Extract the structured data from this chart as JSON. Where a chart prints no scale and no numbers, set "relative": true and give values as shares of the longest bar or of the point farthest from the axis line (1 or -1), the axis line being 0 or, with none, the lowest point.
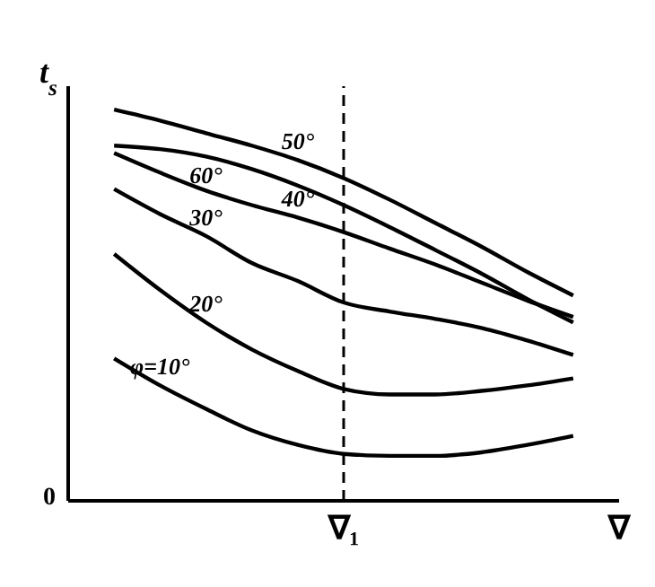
{
  "chart_data": {
    "type": "line",
    "relative": true,
    "ylabel": "t$_{s}$",
    "annotations": [
      "0"
    ],
    "categories": [
      null,
      null,
      null,
      null,
      null,
      null,
      "∇₁",
      null,
      null,
      null,
      null,
      null,
      "∇"
    ],
    "series": [
      {
        "name": "50°",
        "color": "#000000",
        "values": [
          null,
          1,
          0.972,
          0.94,
          0.908,
          0.871,
          0.825,
          0.77,
          0.71,
          0.65,
          0.585,
          0.525,
          null
        ]
      },
      {
        "name": "60°",
        "color": "#000000",
        "values": [
          null,
          0.908,
          0.899,
          0.88,
          0.848,
          0.806,
          0.756,
          0.7,
          0.641,
          0.581,
          0.516,
          0.456,
          null
        ]
      },
      {
        "name": "40°",
        "color": "#000000",
        "values": [
          null,
          0.889,
          0.839,
          0.793,
          0.756,
          0.724,
          0.687,
          0.645,
          0.604,
          0.558,
          0.512,
          0.47,
          null
        ]
      },
      {
        "name": "30°",
        "color": "#000000",
        "values": [
          null,
          0.797,
          0.733,
          0.677,
          0.608,
          0.562,
          0.507,
          0.484,
          0.465,
          0.442,
          0.41,
          0.373,
          null
        ]
      },
      {
        "name": "20°",
        "color": "#000000",
        "values": [
          null,
          0.631,
          0.539,
          0.456,
          0.387,
          0.332,
          0.286,
          0.272,
          0.272,
          0.281,
          0.295,
          0.313,
          null
        ]
      },
      {
        "name": "φ=10°",
        "color": "#000000",
        "values": [
          null,
          0.364,
          0.295,
          0.235,
          0.18,
          0.143,
          0.12,
          0.115,
          0.115,
          0.124,
          0.143,
          0.166,
          null
        ]
      }
    ],
    "ref_lines": [
      {
        "axis": "x",
        "value": "∇₁",
        "label": null,
        "line_style": "dashed"
      }
    ],
    "grid": false,
    "legend": false,
    "marker": "none",
    "line_style": "solid"
  }
}
